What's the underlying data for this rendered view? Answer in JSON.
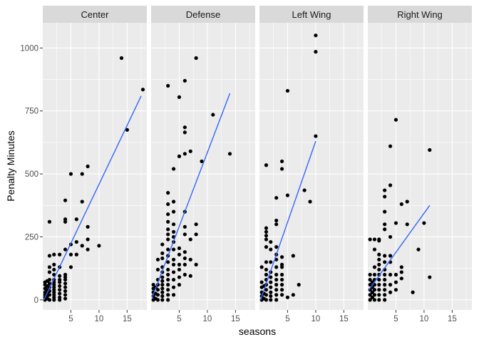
{
  "chart_data": {
    "type": "scatter",
    "facet_by": "position",
    "xlabel": "seasons",
    "ylabel": "Penalty Minutes",
    "xlim": [
      0,
      18.5
    ],
    "ylim": [
      -40,
      1100
    ],
    "x_ticks": [
      5,
      10,
      15
    ],
    "y_ticks": [
      0,
      250,
      500,
      750,
      1000
    ],
    "grid": true,
    "legend": "none",
    "colors": {
      "points": "#000000",
      "trend": "#3366ff",
      "panel_bg": "#ebebeb",
      "strip_bg": "#d9d9d9",
      "grid": "#ffffff"
    },
    "panels": [
      {
        "name": "Center",
        "trend": {
          "x": [
            0.2,
            17.5
          ],
          "y": [
            0,
            810
          ]
        },
        "points": [
          [
            0.4,
            0
          ],
          [
            0.4,
            10
          ],
          [
            0.4,
            20
          ],
          [
            0.4,
            30
          ],
          [
            0.4,
            45
          ],
          [
            0.4,
            60
          ],
          [
            0.4,
            70
          ],
          [
            0.8,
            5
          ],
          [
            0.8,
            15
          ],
          [
            0.8,
            25
          ],
          [
            0.8,
            40
          ],
          [
            0.8,
            55
          ],
          [
            0.8,
            75
          ],
          [
            1.2,
            0
          ],
          [
            1.2,
            20
          ],
          [
            1.2,
            35
          ],
          [
            1.2,
            50
          ],
          [
            1.2,
            65
          ],
          [
            1.2,
            80
          ],
          [
            1.2,
            110
          ],
          [
            1.2,
            130
          ],
          [
            1.2,
            175
          ],
          [
            1.2,
            310
          ],
          [
            2,
            0
          ],
          [
            2,
            10
          ],
          [
            2,
            20
          ],
          [
            2,
            30
          ],
          [
            2,
            40
          ],
          [
            2,
            50
          ],
          [
            2,
            60
          ],
          [
            2,
            70
          ],
          [
            2,
            80
          ],
          [
            2,
            100
          ],
          [
            2,
            120
          ],
          [
            2,
            140
          ],
          [
            2,
            180
          ],
          [
            3,
            0
          ],
          [
            3,
            10
          ],
          [
            3,
            25
          ],
          [
            3,
            40
          ],
          [
            3,
            55
          ],
          [
            3,
            70
          ],
          [
            3,
            80
          ],
          [
            3,
            95
          ],
          [
            3,
            130
          ],
          [
            3,
            180
          ],
          [
            4,
            5
          ],
          [
            4,
            20
          ],
          [
            4,
            35
          ],
          [
            4,
            50
          ],
          [
            4,
            65
          ],
          [
            4,
            80
          ],
          [
            4,
            90
          ],
          [
            4,
            100
          ],
          [
            4,
            200
          ],
          [
            4,
            320
          ],
          [
            4,
            310
          ],
          [
            4,
            395
          ],
          [
            5,
            130
          ],
          [
            5,
            180
          ],
          [
            5,
            220
          ],
          [
            5,
            500
          ],
          [
            6,
            320
          ],
          [
            6,
            180
          ],
          [
            6,
            230
          ],
          [
            7,
            390
          ],
          [
            7,
            500
          ],
          [
            7,
            215
          ],
          [
            8,
            530
          ],
          [
            8,
            290
          ],
          [
            8,
            240
          ],
          [
            8,
            200
          ],
          [
            10,
            215
          ],
          [
            14,
            960
          ],
          [
            15,
            675
          ],
          [
            17.8,
            835
          ]
        ]
      },
      {
        "name": "Defense",
        "trend": {
          "x": [
            0.2,
            14
          ],
          "y": [
            10,
            820
          ]
        },
        "points": [
          [
            0.4,
            0
          ],
          [
            0.4,
            15
          ],
          [
            0.4,
            30
          ],
          [
            0.4,
            45
          ],
          [
            0.4,
            60
          ],
          [
            0.8,
            5
          ],
          [
            0.8,
            25
          ],
          [
            0.8,
            50
          ],
          [
            1.2,
            0
          ],
          [
            1.2,
            20
          ],
          [
            1.2,
            40
          ],
          [
            1.2,
            60
          ],
          [
            1.2,
            80
          ],
          [
            1.2,
            120
          ],
          [
            1.2,
            160
          ],
          [
            2,
            0
          ],
          [
            2,
            15
          ],
          [
            2,
            30
          ],
          [
            2,
            45
          ],
          [
            2,
            60
          ],
          [
            2,
            75
          ],
          [
            2,
            90
          ],
          [
            2,
            110
          ],
          [
            2,
            130
          ],
          [
            2,
            165
          ],
          [
            2,
            185
          ],
          [
            2,
            220
          ],
          [
            3,
            0
          ],
          [
            3,
            20
          ],
          [
            3,
            40
          ],
          [
            3,
            60
          ],
          [
            3,
            80
          ],
          [
            3,
            100
          ],
          [
            3,
            120
          ],
          [
            3,
            150
          ],
          [
            3,
            175
          ],
          [
            3,
            200
          ],
          [
            3,
            240
          ],
          [
            3,
            260
          ],
          [
            3,
            280
          ],
          [
            3,
            310
          ],
          [
            3,
            340
          ],
          [
            3,
            380
          ],
          [
            3,
            425
          ],
          [
            3,
            850
          ],
          [
            4,
            20
          ],
          [
            4,
            50
          ],
          [
            4,
            80
          ],
          [
            4,
            110
          ],
          [
            4,
            140
          ],
          [
            4,
            160
          ],
          [
            4,
            200
          ],
          [
            4,
            230
          ],
          [
            4,
            250
          ],
          [
            4,
            270
          ],
          [
            4,
            300
          ],
          [
            4,
            350
          ],
          [
            4,
            390
          ],
          [
            4,
            520
          ],
          [
            5,
            60
          ],
          [
            5,
            90
          ],
          [
            5,
            120
          ],
          [
            5,
            140
          ],
          [
            5,
            180
          ],
          [
            5,
            205
          ],
          [
            5,
            570
          ],
          [
            5,
            805
          ],
          [
            6,
            100
          ],
          [
            6,
            140
          ],
          [
            6,
            165
          ],
          [
            6,
            190
          ],
          [
            6,
            260
          ],
          [
            6,
            290
          ],
          [
            6,
            350
          ],
          [
            6,
            580
          ],
          [
            6,
            665
          ],
          [
            6,
            685
          ],
          [
            6,
            870
          ],
          [
            7,
            95
          ],
          [
            7,
            160
          ],
          [
            7,
            240
          ],
          [
            7,
            590
          ],
          [
            8,
            140
          ],
          [
            8,
            260
          ],
          [
            8,
            300
          ],
          [
            8,
            960
          ],
          [
            9,
            550
          ],
          [
            11,
            735
          ],
          [
            14,
            580
          ]
        ]
      },
      {
        "name": "Left Wing",
        "trend": {
          "x": [
            0.2,
            10
          ],
          "y": [
            0,
            630
          ]
        },
        "points": [
          [
            0.4,
            0
          ],
          [
            0.4,
            15
          ],
          [
            0.4,
            30
          ],
          [
            0.4,
            50
          ],
          [
            0.4,
            70
          ],
          [
            0.4,
            130
          ],
          [
            0.8,
            5
          ],
          [
            0.8,
            25
          ],
          [
            0.8,
            55
          ],
          [
            1.2,
            0
          ],
          [
            1.2,
            20
          ],
          [
            1.2,
            40
          ],
          [
            1.2,
            60
          ],
          [
            1.2,
            80
          ],
          [
            1.2,
            100
          ],
          [
            1.2,
            120
          ],
          [
            1.2,
            150
          ],
          [
            1.2,
            210
          ],
          [
            1.2,
            240
          ],
          [
            1.2,
            255
          ],
          [
            1.2,
            270
          ],
          [
            1.2,
            285
          ],
          [
            1.2,
            535
          ],
          [
            2,
            0
          ],
          [
            2,
            15
          ],
          [
            2,
            30
          ],
          [
            2,
            50
          ],
          [
            2,
            70
          ],
          [
            2,
            90
          ],
          [
            2,
            110
          ],
          [
            2,
            150
          ],
          [
            2,
            200
          ],
          [
            2,
            230
          ],
          [
            3,
            0
          ],
          [
            3,
            20
          ],
          [
            3,
            40
          ],
          [
            3,
            60
          ],
          [
            3,
            80
          ],
          [
            3,
            100
          ],
          [
            3,
            130
          ],
          [
            3,
            160
          ],
          [
            3,
            180
          ],
          [
            3,
            210
          ],
          [
            3,
            315
          ],
          [
            3,
            300
          ],
          [
            3,
            405
          ],
          [
            4,
            20
          ],
          [
            4,
            40
          ],
          [
            4,
            60
          ],
          [
            4,
            80
          ],
          [
            4,
            100
          ],
          [
            4,
            130
          ],
          [
            4,
            140
          ],
          [
            4,
            170
          ],
          [
            4,
            520
          ],
          [
            4,
            550
          ],
          [
            5,
            10
          ],
          [
            5,
            415
          ],
          [
            5,
            830
          ],
          [
            6,
            20
          ],
          [
            6,
            175
          ],
          [
            7,
            60
          ],
          [
            8,
            435
          ],
          [
            9,
            390
          ],
          [
            10,
            650
          ],
          [
            10,
            985
          ],
          [
            10,
            1050
          ]
        ]
      },
      {
        "name": "Right Wing",
        "trend": {
          "x": [
            0.2,
            11
          ],
          "y": [
            40,
            375
          ]
        },
        "points": [
          [
            0.4,
            0
          ],
          [
            0.4,
            20
          ],
          [
            0.4,
            40
          ],
          [
            0.4,
            60
          ],
          [
            0.4,
            80
          ],
          [
            0.4,
            100
          ],
          [
            0.4,
            240
          ],
          [
            0.8,
            10
          ],
          [
            0.8,
            30
          ],
          [
            0.8,
            50
          ],
          [
            0.8,
            70
          ],
          [
            1.2,
            0
          ],
          [
            1.2,
            20
          ],
          [
            1.2,
            40
          ],
          [
            1.2,
            60
          ],
          [
            1.2,
            80
          ],
          [
            1.2,
            100
          ],
          [
            1.2,
            130
          ],
          [
            1.2,
            200
          ],
          [
            1.2,
            240
          ],
          [
            2,
            0
          ],
          [
            2,
            20
          ],
          [
            2,
            40
          ],
          [
            2,
            60
          ],
          [
            2,
            80
          ],
          [
            2,
            100
          ],
          [
            2,
            120
          ],
          [
            2,
            140
          ],
          [
            2,
            160
          ],
          [
            2,
            180
          ],
          [
            2,
            240
          ],
          [
            2,
            235
          ],
          [
            3,
            0
          ],
          [
            3,
            20
          ],
          [
            3,
            40
          ],
          [
            3,
            60
          ],
          [
            3,
            80
          ],
          [
            3,
            100
          ],
          [
            3,
            120
          ],
          [
            3,
            150
          ],
          [
            3,
            175
          ],
          [
            3,
            280
          ],
          [
            3,
            300
          ],
          [
            3,
            350
          ],
          [
            3,
            410
          ],
          [
            3,
            435
          ],
          [
            4,
            30
          ],
          [
            4,
            60
          ],
          [
            4,
            100
          ],
          [
            4,
            150
          ],
          [
            4,
            175
          ],
          [
            4,
            250
          ],
          [
            4,
            455
          ],
          [
            4,
            610
          ],
          [
            5,
            40
          ],
          [
            5,
            70
          ],
          [
            5,
            100
          ],
          [
            5,
            305
          ],
          [
            5,
            715
          ],
          [
            6,
            85
          ],
          [
            6,
            110
          ],
          [
            6,
            130
          ],
          [
            6,
            380
          ],
          [
            7,
            300
          ],
          [
            7,
            390
          ],
          [
            8,
            30
          ],
          [
            9,
            200
          ],
          [
            10,
            305
          ],
          [
            11,
            90
          ],
          [
            11,
            595
          ]
        ]
      }
    ]
  }
}
